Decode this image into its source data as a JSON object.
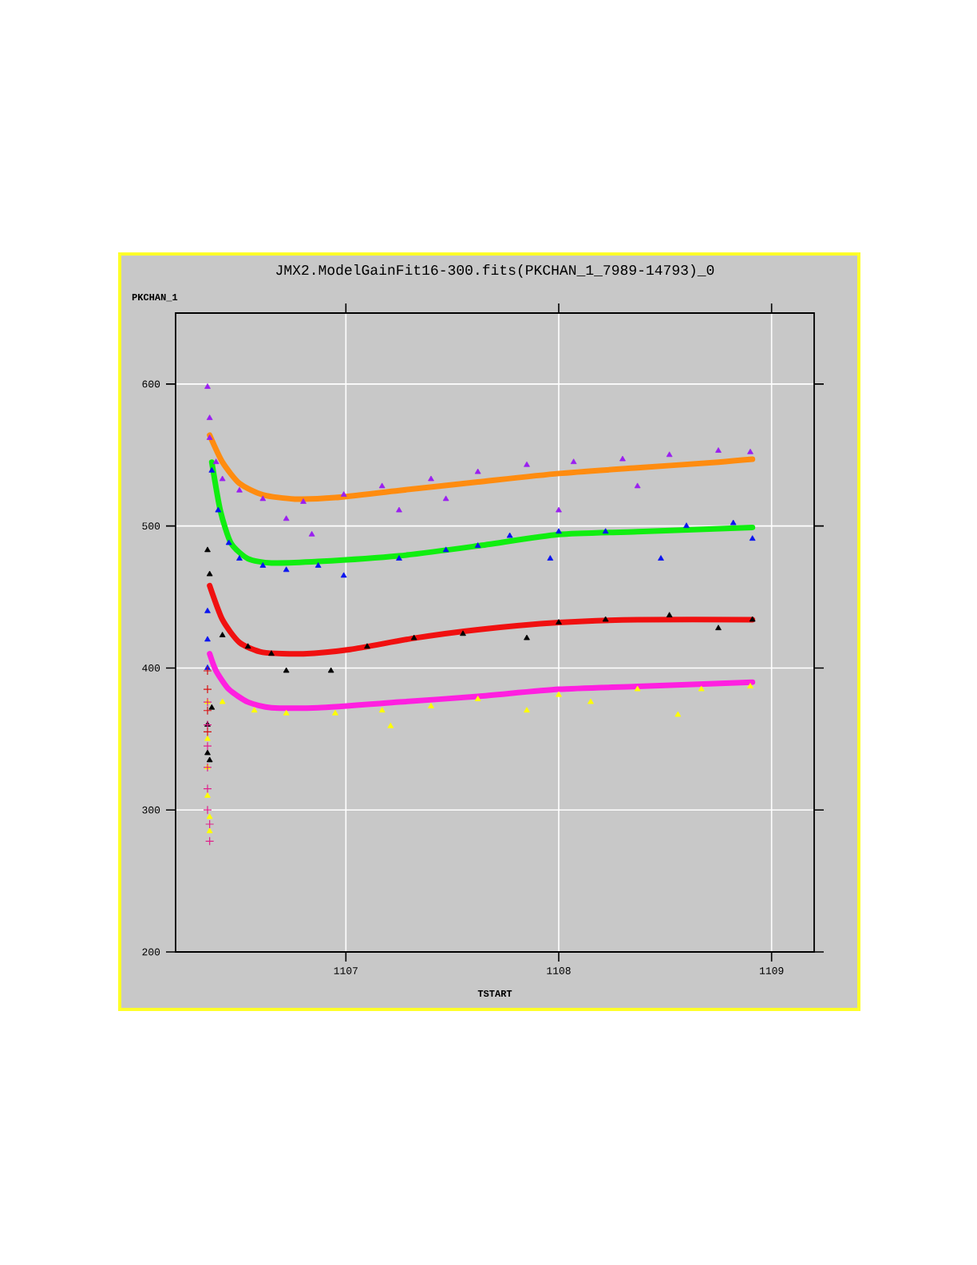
{
  "chart_data": {
    "type": "scatter",
    "title": "JMX2.ModelGainFit16-300.fits(PKCHAN_1_7989-14793)_0",
    "xlabel": "TSTART",
    "ylabel": "PKCHAN_1",
    "xlim": [
      1106.2,
      1109.2
    ],
    "ylim": [
      200,
      650
    ],
    "xticks": [
      1107,
      1108,
      1109
    ],
    "yticks": [
      200,
      300,
      400,
      500,
      600
    ],
    "grid": true,
    "marker": "triangle",
    "series": [
      {
        "color": "#9a1ff0",
        "x": [
          1106.35,
          1106.36,
          1106.36,
          1106.39,
          1106.42,
          1106.5,
          1106.61,
          1106.8,
          1106.99,
          1107.17,
          1107.4,
          1107.62,
          1107.85,
          1108.07,
          1108.3,
          1108.52,
          1108.75,
          1108.9,
          1106.72,
          1106.84,
          1107.25,
          1107.47,
          1108.0,
          1108.37
        ],
        "values": [
          598,
          576,
          562,
          545,
          533,
          525,
          519,
          517,
          522,
          528,
          533,
          538,
          543,
          545,
          547,
          550,
          553,
          552,
          505,
          494,
          511,
          519,
          511,
          528
        ]
      },
      {
        "color": "#0a14f0",
        "x": [
          1106.37,
          1106.4,
          1106.45,
          1106.5,
          1106.61,
          1106.72,
          1106.87,
          1106.99,
          1107.25,
          1107.47,
          1107.62,
          1107.77,
          1107.96,
          1108.0,
          1108.22,
          1108.48,
          1108.6,
          1108.82,
          1108.91,
          1106.35,
          1106.35,
          1106.35
        ],
        "values": [
          539,
          511,
          488,
          477,
          472,
          469,
          472,
          465,
          477,
          483,
          486,
          493,
          477,
          496,
          496,
          477,
          500,
          502,
          491,
          440,
          420,
          400
        ]
      },
      {
        "color": "#000000",
        "x": [
          1106.35,
          1106.36,
          1106.42,
          1106.54,
          1106.65,
          1106.72,
          1106.93,
          1107.1,
          1107.32,
          1107.55,
          1107.85,
          1108.0,
          1108.22,
          1108.52,
          1108.75,
          1108.91,
          1106.37,
          1106.35,
          1106.35,
          1106.36
        ],
        "values": [
          483,
          466,
          423,
          415,
          410,
          398,
          398,
          415,
          421,
          424,
          421,
          432,
          434,
          437,
          428,
          434,
          372,
          360,
          340,
          335
        ]
      },
      {
        "color": "#ffff00",
        "x": [
          1106.35,
          1106.42,
          1106.57,
          1106.72,
          1106.95,
          1107.17,
          1107.21,
          1107.4,
          1107.62,
          1107.85,
          1108.0,
          1108.15,
          1108.37,
          1108.56,
          1108.67,
          1108.9,
          1106.35,
          1106.35,
          1106.35,
          1106.36,
          1106.36
        ],
        "values": [
          376,
          376,
          370,
          368,
          368,
          370,
          359,
          373,
          378,
          370,
          381,
          376,
          385,
          367,
          385,
          387,
          350,
          330,
          310,
          295,
          285
        ]
      },
      {
        "type": "scatter",
        "marker": "cross",
        "color": "#e0208a",
        "x": [
          1106.35,
          1106.35,
          1106.35,
          1106.35,
          1106.35,
          1106.35,
          1106.36,
          1106.36
        ],
        "values": [
          376,
          360,
          345,
          330,
          315,
          300,
          290,
          278
        ]
      },
      {
        "type": "scatter",
        "marker": "cross",
        "color": "#d81010",
        "x": [
          1106.35,
          1106.35,
          1106.35,
          1106.35
        ],
        "values": [
          398,
          385,
          370,
          355
        ]
      },
      {
        "type": "line",
        "marker": "none",
        "color": "#ff8c10",
        "x": [
          1106.36,
          1106.42,
          1106.5,
          1106.61,
          1106.76,
          1106.95,
          1107.25,
          1107.62,
          1108.0,
          1108.37,
          1108.75,
          1108.91
        ],
        "values": [
          564,
          545,
          530,
          522,
          519,
          520,
          525,
          531,
          537,
          541,
          545,
          547
        ]
      },
      {
        "type": "line",
        "marker": "none",
        "color": "#10ee10",
        "x": [
          1106.37,
          1106.41,
          1106.46,
          1106.54,
          1106.65,
          1106.87,
          1107.25,
          1107.62,
          1108.0,
          1108.37,
          1108.91
        ],
        "values": [
          545,
          511,
          488,
          477,
          474,
          475,
          479,
          486,
          494,
          496,
          499
        ]
      },
      {
        "type": "line",
        "marker": "none",
        "color": "#f01010",
        "x": [
          1106.36,
          1106.42,
          1106.5,
          1106.61,
          1106.8,
          1107.02,
          1107.32,
          1107.62,
          1108.0,
          1108.37,
          1108.91
        ],
        "values": [
          458,
          434,
          418,
          411,
          410,
          413,
          421,
          427,
          432,
          434,
          434
        ]
      },
      {
        "type": "line",
        "marker": "none",
        "color": "#ff20e0",
        "x": [
          1106.36,
          1106.39,
          1106.45,
          1106.54,
          1106.65,
          1106.87,
          1107.25,
          1107.62,
          1108.0,
          1108.37,
          1108.91
        ],
        "values": [
          410,
          398,
          385,
          376,
          372,
          372,
          376,
          380,
          385,
          387,
          390
        ]
      }
    ]
  }
}
